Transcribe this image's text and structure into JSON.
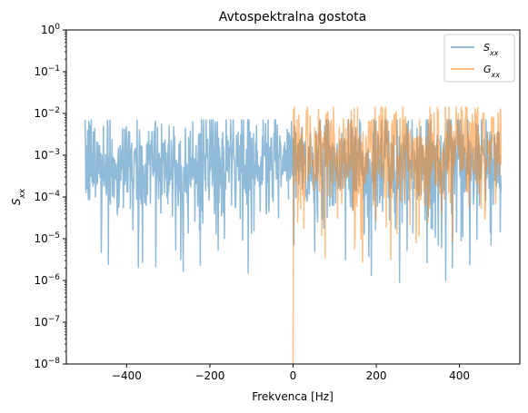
{
  "chart_data": {
    "type": "line",
    "title": "Avtospektralna gostota",
    "xlabel": "Frekvenca [Hz]",
    "ylabel": {
      "main": "S",
      "sub": "xx"
    },
    "yscale": "log",
    "xlim": [
      -545,
      545
    ],
    "ylim": [
      1e-08,
      1
    ],
    "x_ticks": [
      -400,
      -200,
      0,
      200,
      400
    ],
    "x_tick_labels": [
      "−400",
      "−200",
      "0",
      "200",
      "400"
    ],
    "y_ticks": [
      {
        "exp": 0,
        "label_base": "10",
        "label_exp": "0"
      },
      {
        "exp": -1,
        "label_base": "10",
        "label_exp": "−1"
      },
      {
        "exp": -2,
        "label_base": "10",
        "label_exp": "−2"
      },
      {
        "exp": -3,
        "label_base": "10",
        "label_exp": "−3"
      },
      {
        "exp": -4,
        "label_base": "10",
        "label_exp": "−4"
      },
      {
        "exp": -5,
        "label_base": "10",
        "label_exp": "−5"
      },
      {
        "exp": -6,
        "label_base": "10",
        "label_exp": "−6"
      },
      {
        "exp": -7,
        "label_base": "10",
        "label_exp": "−7"
      },
      {
        "exp": -8,
        "label_base": "10",
        "label_exp": "−8"
      }
    ],
    "grid": false,
    "legend_position": "top-right",
    "series": [
      {
        "name": {
          "main": "S",
          "sub": "xx"
        },
        "color": "#1f77b4",
        "alpha": 0.5,
        "x_range": [
          -500,
          500
        ],
        "points": 1000,
        "typical_range": [
          0.0001,
          0.004
        ],
        "max_approx": 0.007,
        "min_approx": 9e-07
      },
      {
        "name": {
          "main": "G",
          "sub": "xx"
        },
        "color": "#ff7f0e",
        "alpha": 0.5,
        "x_range": [
          0,
          500
        ],
        "points": 500,
        "start_value": 1e-08,
        "typical_range": [
          0.0002,
          0.008
        ],
        "max_approx": 0.014,
        "min_approx": 2e-06
      }
    ]
  }
}
